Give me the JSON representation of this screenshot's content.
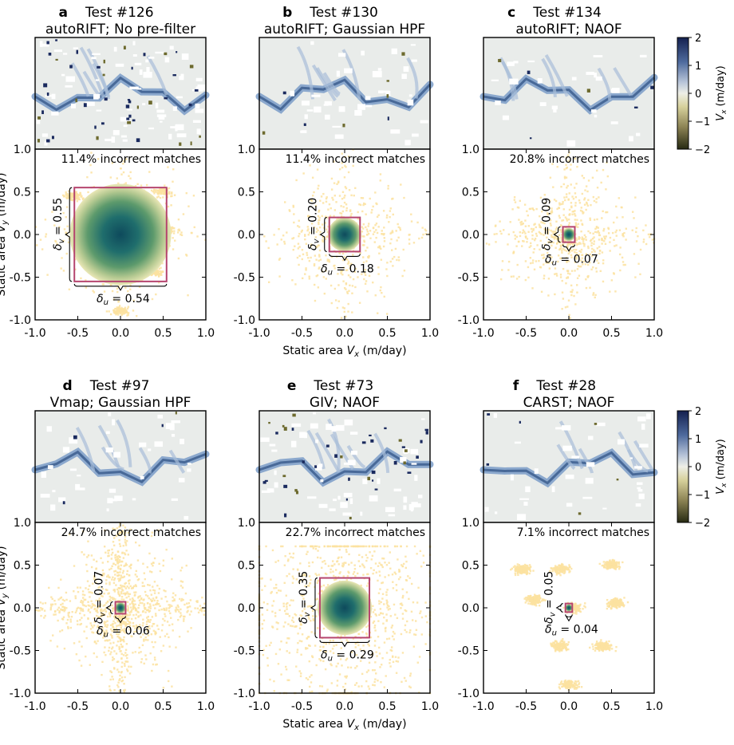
{
  "chart_data": [
    {
      "type": "scatter",
      "label": "a",
      "test": "Test #126",
      "method": "autoRIFT; No pre-filter",
      "incorrect": "11.4% incorrect matches",
      "du": "0.54",
      "dv": "0.55",
      "spread": 0.6,
      "cross": 0.15,
      "star": 0.1,
      "tail": 0.0,
      "dots": 0.25
    },
    {
      "type": "scatter",
      "label": "b",
      "test": "Test #130",
      "method": "autoRIFT; Gaussian HPF",
      "incorrect": "11.4% incorrect matches",
      "du": "0.18",
      "dv": "0.20",
      "spread": 0.45,
      "cross": 0.25,
      "star": 0.2,
      "tail": 0.0,
      "dots": 0.0
    },
    {
      "type": "scatter",
      "label": "c",
      "test": "Test #134",
      "method": "autoRIFT; NAOF",
      "incorrect": "20.8% incorrect matches",
      "du": "0.07",
      "dv": "0.09",
      "spread": 0.35,
      "cross": 0.3,
      "star": 0.55,
      "tail": 0.0,
      "dots": 0.0
    },
    {
      "type": "scatter",
      "label": "d",
      "test": "Test #97",
      "method": "Vmap; Gaussian HPF",
      "incorrect": "24.7% incorrect matches",
      "du": "0.06",
      "dv": "0.07",
      "spread": 0.55,
      "cross": 0.85,
      "star": 0.45,
      "tail": 0.0,
      "dots": 0.0
    },
    {
      "type": "scatter",
      "label": "e",
      "test": "Test #73",
      "method": "GIV; NAOF",
      "incorrect": "22.7% incorrect matches",
      "du": "0.29",
      "dv": "0.35",
      "spread": 1.0,
      "cross": 0.3,
      "star": 0.2,
      "tail": 0.0,
      "dots": 0.0
    },
    {
      "type": "scatter",
      "label": "f",
      "test": "Test #28",
      "method": "CARST; NAOF",
      "incorrect": "7.1% incorrect matches",
      "du": "0.04",
      "dv": "0.05",
      "spread": 0.0,
      "cross": 0.0,
      "star": 0.0,
      "tail": 0.0,
      "dots": 1.0
    }
  ],
  "axes": {
    "xlabel_pre": "Static area ",
    "xlabel_var": "V",
    "xlabel_sub": "x",
    "xlabel_post": " (m/day)",
    "ylabel_pre": "Static area ",
    "ylabel_var": "V",
    "ylabel_sub": "y",
    "ylabel_post": " (m/day)",
    "xticks": [
      "-1.0",
      "-0.5",
      "0.0",
      "0.5",
      "1.0"
    ],
    "yticks": [
      "1.0",
      "0.5",
      "0.0",
      "-0.5",
      "-1.0"
    ],
    "xlim": [
      -1,
      1
    ],
    "ylim": [
      -1,
      1
    ]
  },
  "colorbar": {
    "ticks": [
      "2",
      "1",
      "0",
      "−1",
      "−2"
    ],
    "label_var": "V",
    "label_sub": "x",
    "label_post": " (m/day)",
    "range": [
      -2,
      2
    ]
  },
  "colors": {
    "box": "#b5446e",
    "scatter": "#fbe2a0",
    "glacier": "#7a9cc8",
    "background": "#e9ecea",
    "core": "#0e4a5c"
  }
}
